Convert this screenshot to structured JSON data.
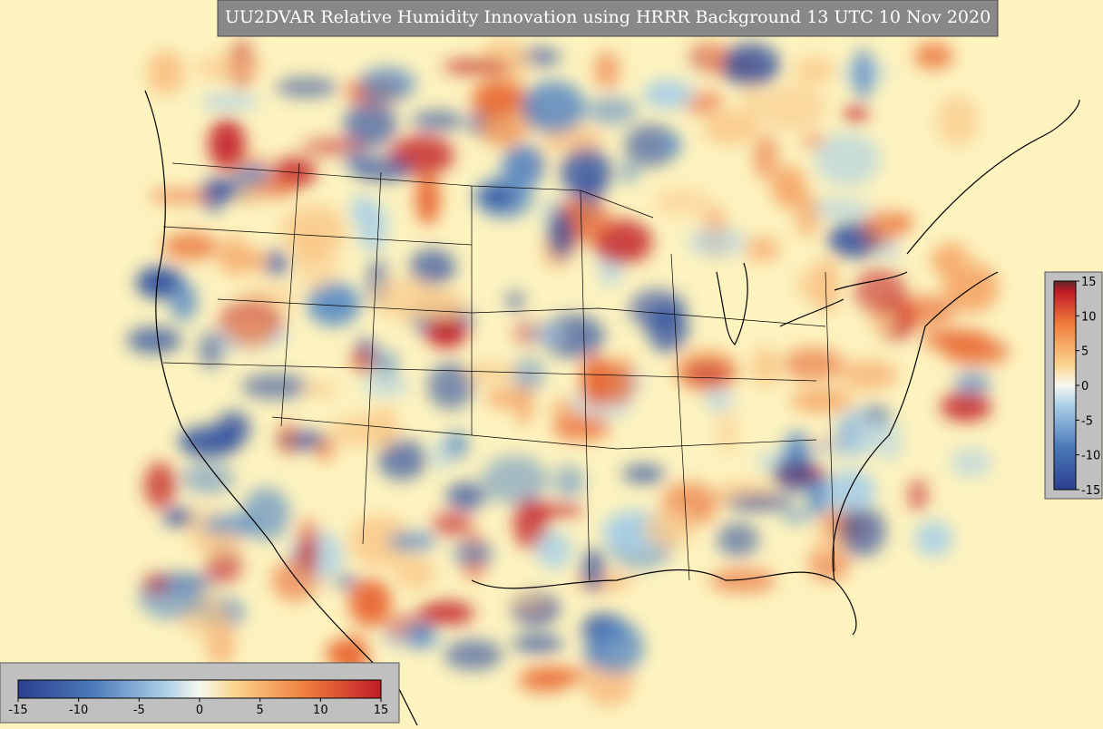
{
  "title": "UU2DVAR Relative Humidity Innovation using HRRR Background 13 UTC 10 Nov 2020",
  "colorbars": [
    {
      "orientation": "horizontal",
      "ticks": [
        -15,
        -10,
        -5,
        0,
        5,
        10,
        15
      ]
    },
    {
      "orientation": "vertical",
      "ticks": [
        15,
        10,
        5,
        0,
        -5,
        -10,
        -15
      ]
    }
  ]
}
